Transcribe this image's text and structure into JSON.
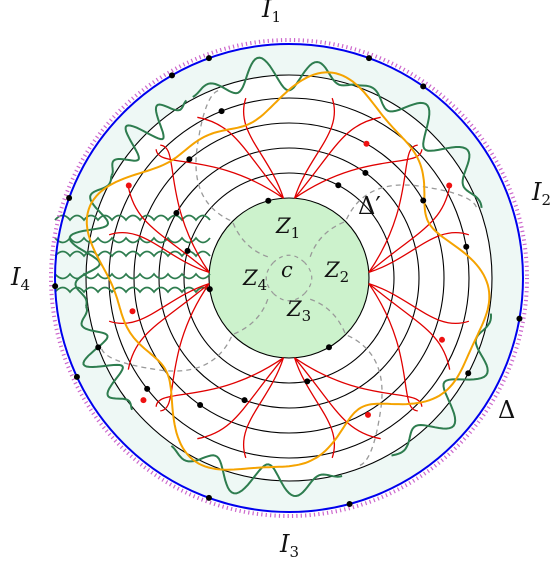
{
  "labels": {
    "I1": {
      "base": "I",
      "sub": "1"
    },
    "I2": {
      "base": "I",
      "sub": "2"
    },
    "I3": {
      "base": "I",
      "sub": "3"
    },
    "I4": {
      "base": "I",
      "sub": "4"
    },
    "Delta": "Δ",
    "DeltaPrime": "Δ′",
    "c": "c",
    "Z1": {
      "base": "Z",
      "sub": "1"
    },
    "Z2": {
      "base": "Z",
      "sub": "2"
    },
    "Z3": {
      "base": "Z",
      "sub": "3"
    },
    "Z4": {
      "base": "Z",
      "sub": "4"
    }
  },
  "colors": {
    "outer_boundary": "#0000ee",
    "outer_dots": "#cc66cc",
    "annulus_fill": "#eef8f5",
    "center_fill": "#ccf2cc",
    "rings": "#000000",
    "orange": "#f5a300",
    "red": "#e00000",
    "green": "#2e7d4f",
    "dashed": "#999999",
    "vertex": "#000000",
    "red_vertex": "#ee1111"
  }
}
